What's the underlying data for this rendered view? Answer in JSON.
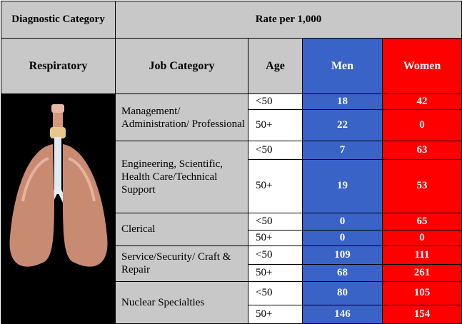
{
  "header": {
    "diagnostic_category": "Diagnostic Category",
    "rate": "Rate per 1,000",
    "respiratory": "Respiratory",
    "job_category": "Job Category",
    "age": "Age",
    "men": "Men",
    "women": "Women"
  },
  "groups": [
    {
      "job": "Management/ Administration/ Professional",
      "rows": [
        {
          "age": "<50",
          "men": 18,
          "women": 42
        },
        {
          "age": "50+",
          "men": 22,
          "women": 0
        }
      ]
    },
    {
      "job": "Engineering, Scientific, Health Care/Technical Support",
      "rows": [
        {
          "age": "<50",
          "men": 7,
          "women": 63
        },
        {
          "age": "50+",
          "men": 19,
          "women": 53
        }
      ]
    },
    {
      "job": "Clerical",
      "rows": [
        {
          "age": "<50",
          "men": 0,
          "women": 65
        },
        {
          "age": "50+",
          "men": 0,
          "women": 0
        }
      ]
    },
    {
      "job": "Service/Security/ Craft & Repair",
      "rows": [
        {
          "age": "<50",
          "men": 109,
          "women": 111
        },
        {
          "age": "50+",
          "men": 68,
          "women": 261
        }
      ]
    },
    {
      "job": "Nuclear Specialties",
      "rows": [
        {
          "age": "<50",
          "men": 80,
          "women": 105
        },
        {
          "age": "50+",
          "men": 146,
          "women": 154
        }
      ]
    }
  ]
}
